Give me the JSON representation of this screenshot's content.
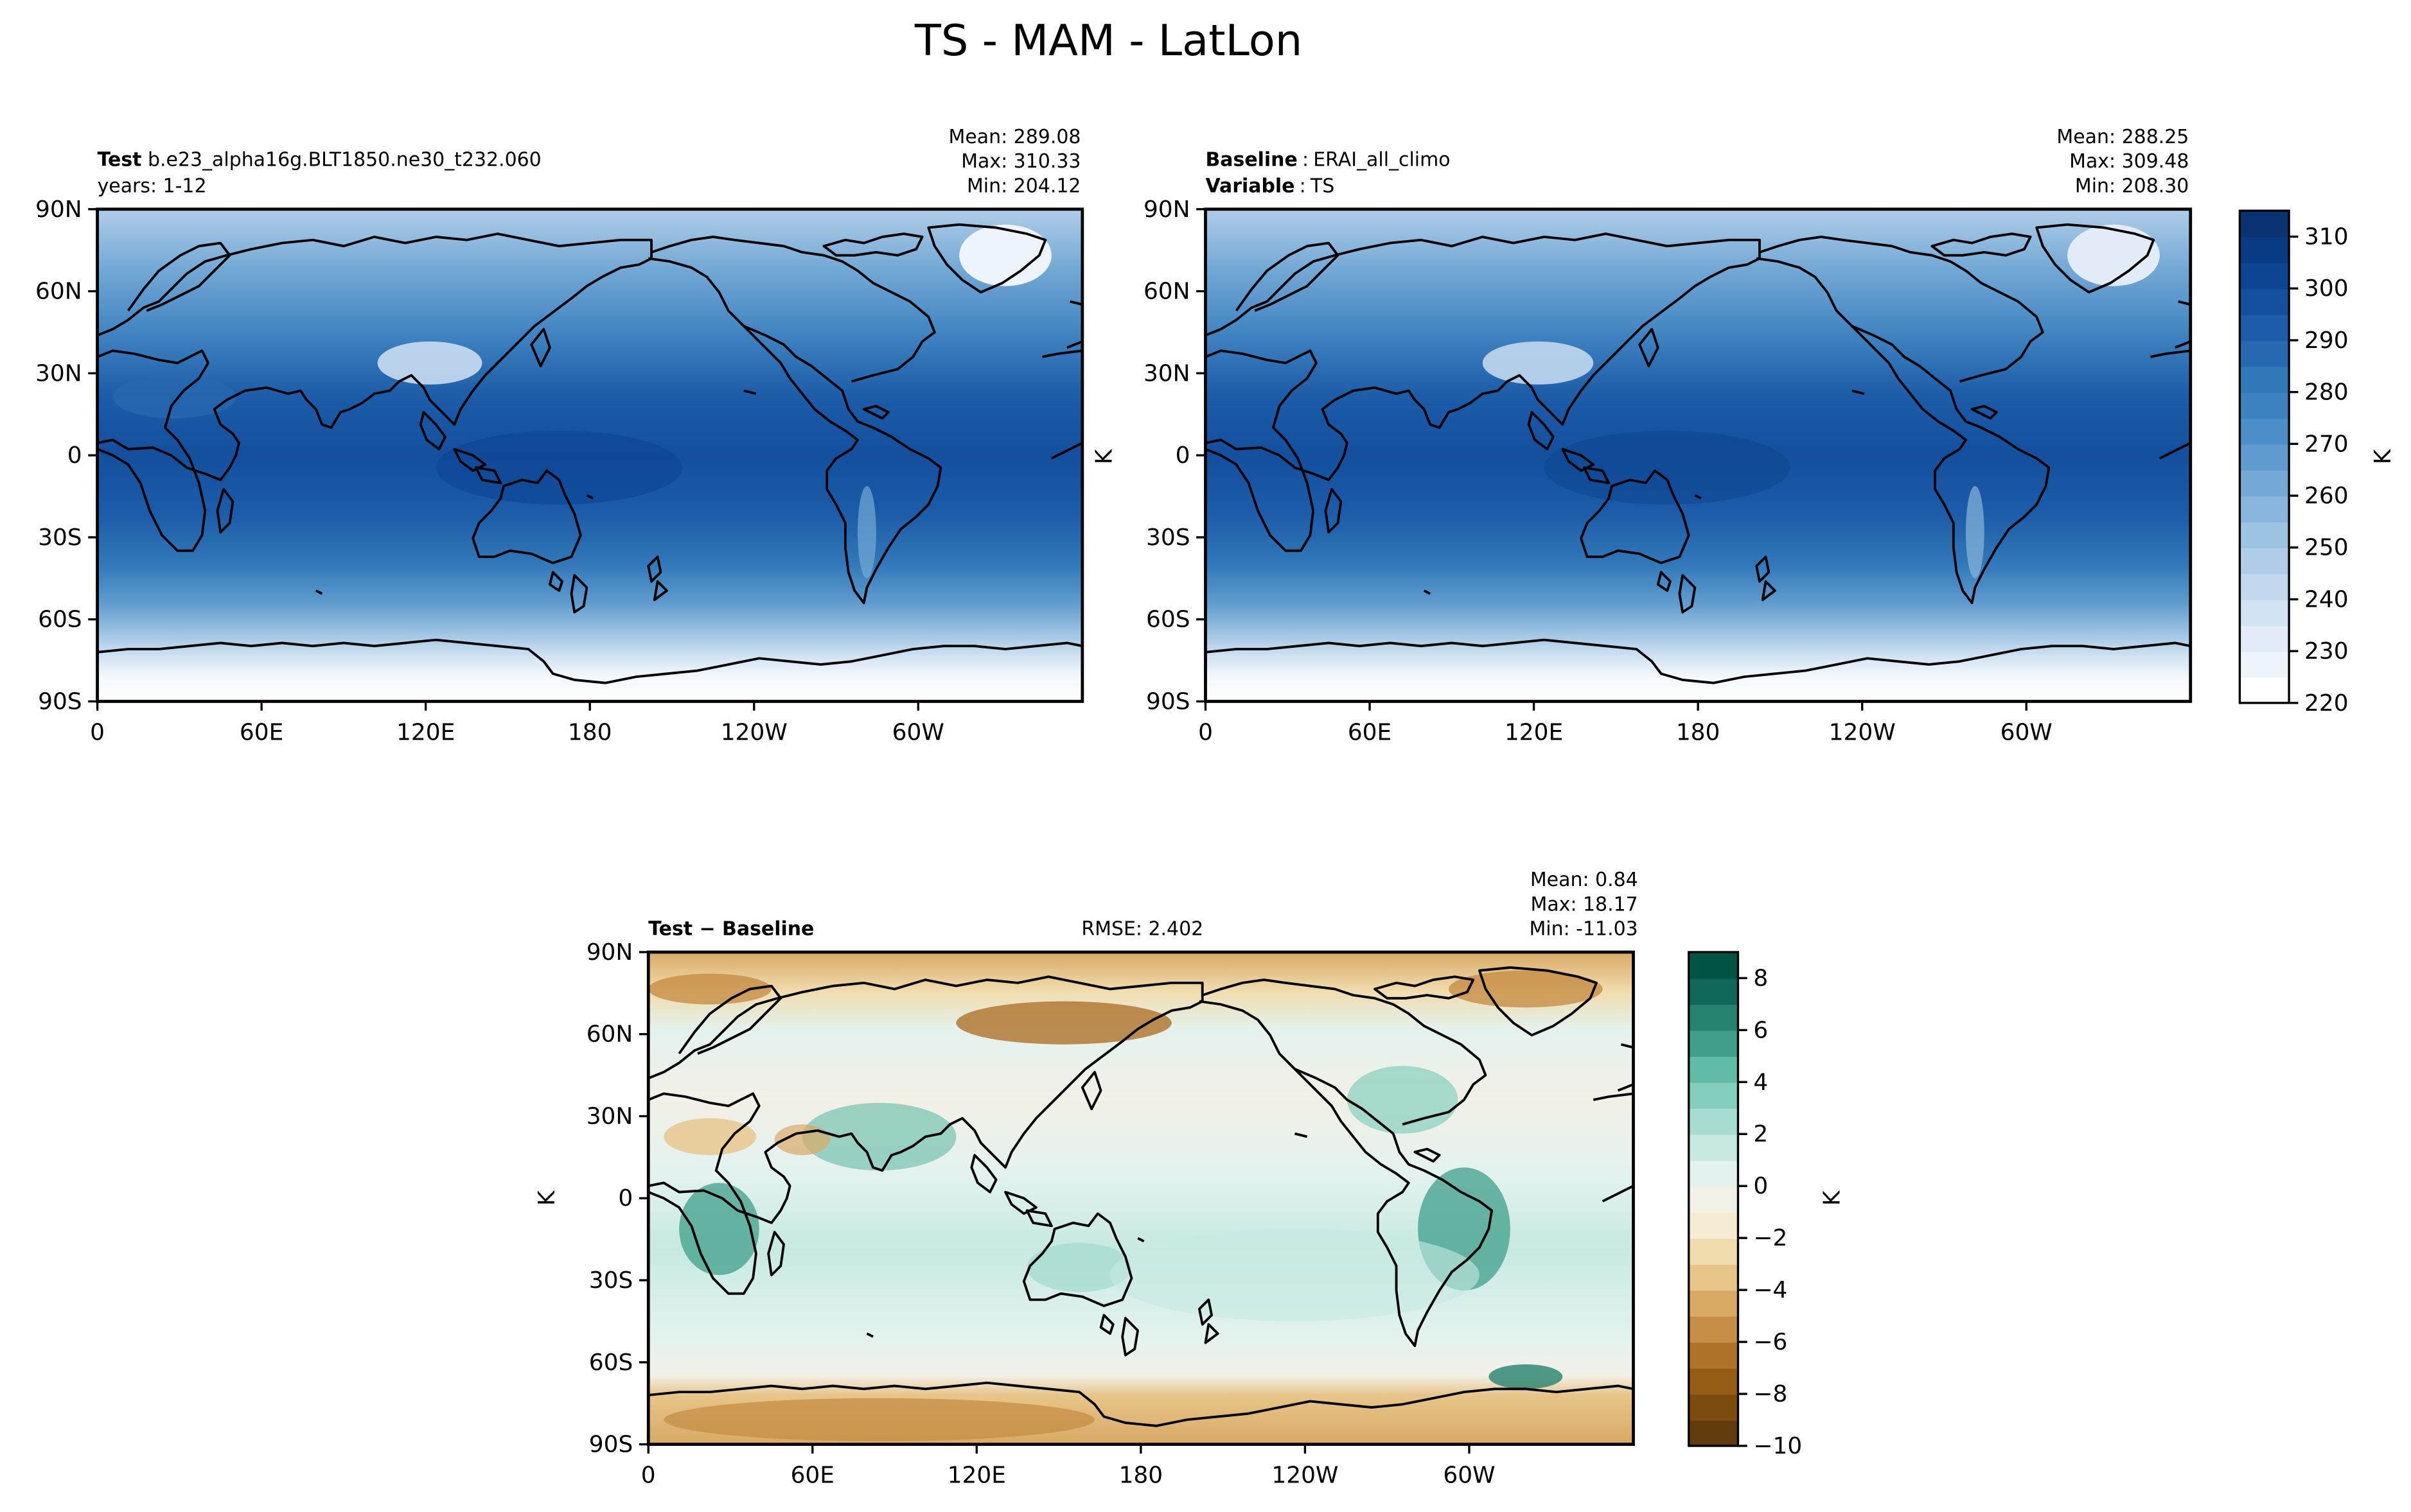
{
  "figure_title": "TS - MAM - LatLon",
  "colors": {
    "abs_scale": [
      "#ffffff",
      "#eef4fb",
      "#e1ecf8",
      "#d2e3f3",
      "#c1d8ee",
      "#afcde8",
      "#9dc3e2",
      "#89b6dc",
      "#74a9d5",
      "#5f9bce",
      "#4c8ec7",
      "#3d82c0",
      "#3178b9",
      "#2669b0",
      "#1c5ca8",
      "#134f9d",
      "#0c4592",
      "#083b84",
      "#0a3272"
    ],
    "diff_scale": [
      "#613b0b",
      "#7c4c0f",
      "#955d16",
      "#af7229",
      "#c58d45",
      "#d8a965",
      "#e7c589",
      "#f1dcae",
      "#f6ebd3",
      "#f3f0e6",
      "#e3f2ef",
      "#c7e9e2",
      "#a6dcd1",
      "#84cebd",
      "#61bba7",
      "#3f9f8b",
      "#25826f",
      "#11685a",
      "#005446"
    ],
    "coast": "#000000"
  },
  "panels": {
    "test": {
      "label_bold": "Test",
      "label_text": "b.e23_alpha16g.BLT1850.ne30_t232.060",
      "line2": "years: 1-12",
      "stats": [
        "Mean: 289.08",
        "Max: 310.33",
        "Min: 204.12"
      ]
    },
    "baseline": {
      "label_bold": "Baseline",
      "label_text": "ERAI_all_climo",
      "line2_bold": "Variable",
      "line2_text": "TS",
      "stats": [
        "Mean: 288.25",
        "Max: 309.48",
        "Min: 208.30"
      ],
      "ylabel": "K"
    },
    "diff": {
      "label_bold": "Test − Baseline",
      "rmse": "RMSE: 2.402",
      "stats": [
        "Mean:  0.84",
        "Max: 18.17",
        "Min: -11.03"
      ],
      "ylabel": "K"
    }
  },
  "chart_data": [
    {
      "type": "heatmap",
      "name": "Test",
      "x_ticks": [
        "0",
        "60E",
        "120E",
        "180",
        "120W",
        "60W"
      ],
      "y_ticks": [
        "90N",
        "60N",
        "30N",
        "0",
        "30S",
        "60S",
        "90S"
      ],
      "xlim": [
        0,
        360
      ],
      "ylim": [
        -90,
        90
      ],
      "field_description_units": "K",
      "colorbar": {
        "ticks": [
          "310",
          "300",
          "290",
          "280",
          "270",
          "260",
          "250",
          "240",
          "230",
          "220"
        ],
        "label": "K",
        "range": [
          220,
          315
        ]
      }
    },
    {
      "type": "heatmap",
      "name": "Baseline",
      "x_ticks": [
        "0",
        "60E",
        "120E",
        "180",
        "120W",
        "60W"
      ],
      "y_ticks": [
        "90N",
        "60N",
        "30N",
        "0",
        "30S",
        "60S",
        "90S"
      ],
      "xlim": [
        0,
        360
      ],
      "ylim": [
        -90,
        90
      ]
    },
    {
      "type": "heatmap",
      "name": "Test − Baseline",
      "x_ticks": [
        "0",
        "60E",
        "120E",
        "180",
        "120W",
        "60W"
      ],
      "y_ticks": [
        "90N",
        "60N",
        "30N",
        "0",
        "30S",
        "60S",
        "90S"
      ],
      "xlim": [
        0,
        360
      ],
      "ylim": [
        -90,
        90
      ],
      "colorbar": {
        "ticks": [
          "8",
          "6",
          "4",
          "2",
          "0",
          "−2",
          "−4",
          "−6",
          "−8",
          "−10"
        ],
        "label": "K",
        "range": [
          -10,
          9
        ]
      }
    }
  ]
}
